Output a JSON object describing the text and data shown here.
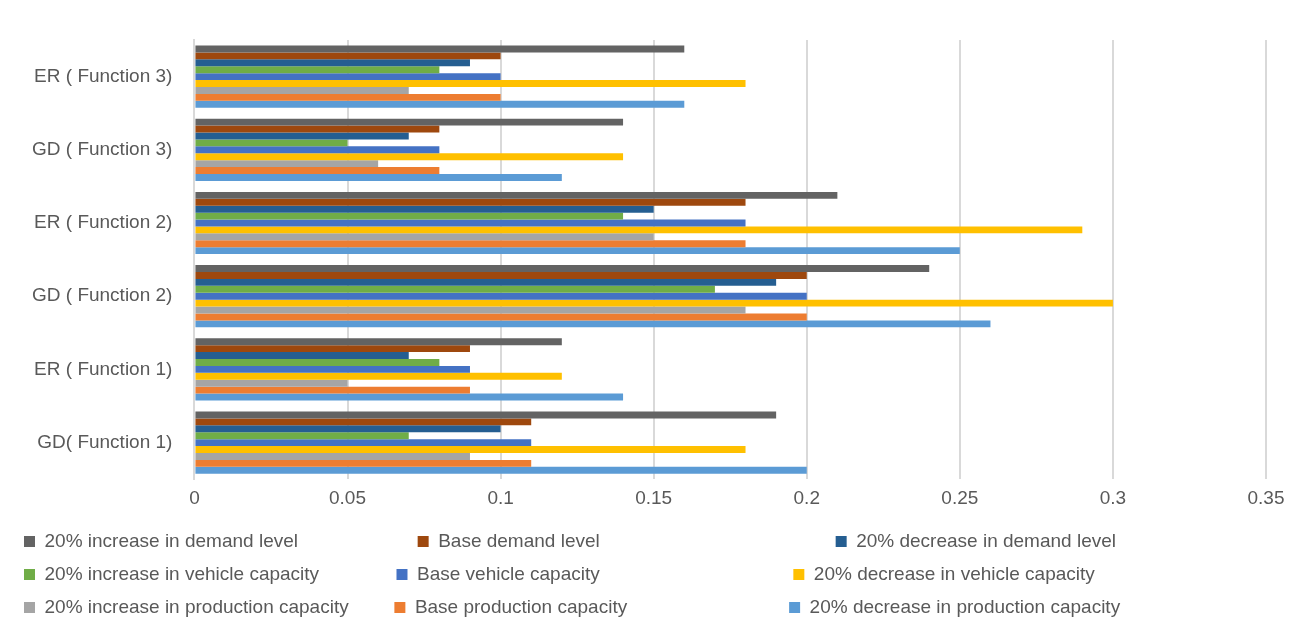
{
  "chart_data": {
    "type": "bar",
    "orientation": "horizontal",
    "categories": [
      "ER ( Function 3)",
      "GD ( Function 3)",
      "ER ( Function 2)",
      "GD ( Function 2)",
      "ER ( Function 1)",
      "GD( Function 1)"
    ],
    "series": [
      {
        "name": "20% increase in demand level",
        "color": "#636363",
        "values": [
          0.16,
          0.14,
          0.21,
          0.24,
          0.12,
          0.19
        ]
      },
      {
        "name": "Base demand level",
        "color": "#9e480e",
        "values": [
          0.1,
          0.08,
          0.18,
          0.2,
          0.09,
          0.11
        ]
      },
      {
        "name": "20% decrease in demand level",
        "color": "#255e91",
        "values": [
          0.09,
          0.07,
          0.15,
          0.19,
          0.07,
          0.1
        ]
      },
      {
        "name": "20% increase in vehicle capacity",
        "color": "#70ad47",
        "values": [
          0.08,
          0.05,
          0.14,
          0.17,
          0.08,
          0.07
        ]
      },
      {
        "name": "Base vehicle capacity",
        "color": "#4472c4",
        "values": [
          0.1,
          0.08,
          0.18,
          0.2,
          0.09,
          0.11
        ]
      },
      {
        "name": "20% decrease in vehicle capacity",
        "color": "#ffc000",
        "values": [
          0.18,
          0.14,
          0.29,
          0.3,
          0.12,
          0.18
        ]
      },
      {
        "name": "20% increase in production capacity",
        "color": "#a5a5a5",
        "values": [
          0.07,
          0.06,
          0.15,
          0.18,
          0.05,
          0.09
        ]
      },
      {
        "name": "Base production capacity",
        "color": "#ed7d31",
        "values": [
          0.1,
          0.08,
          0.18,
          0.2,
          0.09,
          0.11
        ]
      },
      {
        "name": "20% decrease in production capacity",
        "color": "#5b9bd5",
        "values": [
          0.16,
          0.12,
          0.25,
          0.26,
          0.14,
          0.2
        ]
      }
    ],
    "xlim": [
      0,
      0.35
    ],
    "xticks": [
      0,
      0.05,
      0.1,
      0.15,
      0.2,
      0.25,
      0.3,
      0.35
    ],
    "grid": "x",
    "legend": "bottom"
  }
}
